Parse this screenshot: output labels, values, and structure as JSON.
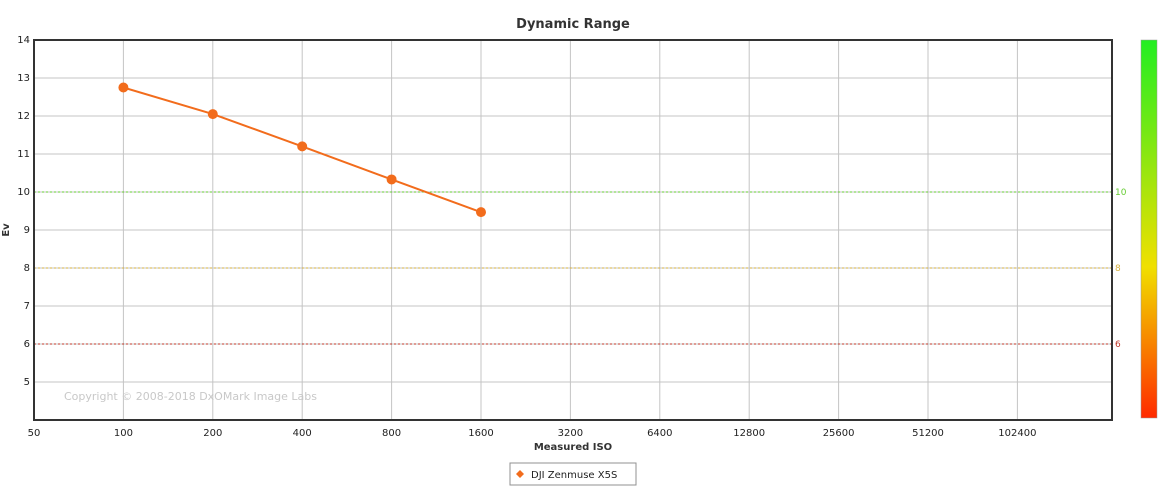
{
  "chart_data": {
    "type": "line",
    "title": "Dynamic Range",
    "xlabel": "Measured ISO",
    "ylabel": "Ev",
    "x_categories": [
      "50",
      "100",
      "200",
      "400",
      "800",
      "1600",
      "3200",
      "6400",
      "12800",
      "25600",
      "51200",
      "102400"
    ],
    "ylim": [
      4,
      14
    ],
    "y_ticks": [
      5,
      6,
      7,
      8,
      9,
      10,
      11,
      12,
      13,
      14
    ],
    "grid": true,
    "legend_position": "bottom-center",
    "series": [
      {
        "name": "DJI Zenmuse X5S",
        "color": "#f26c1c",
        "points": [
          {
            "x": "100",
            "y": 12.75
          },
          {
            "x": "200",
            "y": 12.05
          },
          {
            "x": "400",
            "y": 11.2
          },
          {
            "x": "800",
            "y": 10.33
          },
          {
            "x": "1600",
            "y": 9.47
          }
        ]
      }
    ],
    "reference_lines": [
      {
        "value": 10,
        "label": "10",
        "color": "#66cc33"
      },
      {
        "value": 8,
        "label": "8",
        "color": "#d6b040"
      },
      {
        "value": 6,
        "label": "6",
        "color": "#c0392b"
      }
    ],
    "color_scale": {
      "top": "#22ee22",
      "middle": "#f0e000",
      "bottom": "#ff2a00"
    },
    "annotation": "Copyright © 2008-2018 DxOMark Image Labs"
  }
}
